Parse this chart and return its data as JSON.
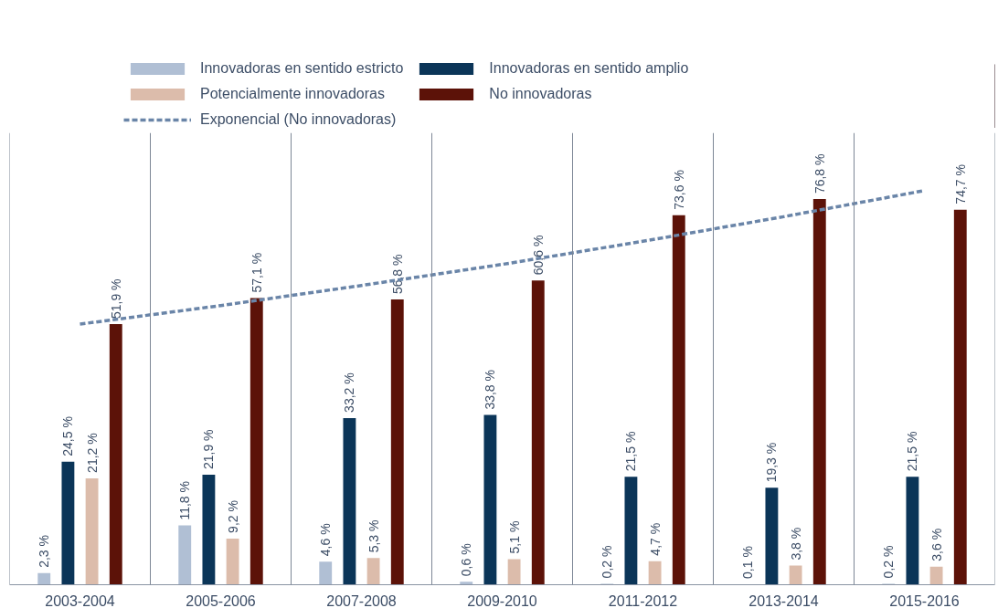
{
  "chart_data": {
    "type": "bar",
    "categories": [
      "2003-2004",
      "2005-2006",
      "2007-2008",
      "2009-2010",
      "2011-2012",
      "2013-2014",
      "2015-2016"
    ],
    "series": [
      {
        "name": "Innovadoras en sentido estricto",
        "color": "#b0bfd4",
        "values": [
          2.3,
          11.8,
          4.6,
          0.6,
          0.2,
          0.1,
          0.2
        ],
        "value_labels": [
          "2,3 %",
          "11,8 %",
          "4,6 %",
          "0,6 %",
          "0,2 %",
          "0,1 %",
          "0,2 %"
        ]
      },
      {
        "name": "Innovadoras en sentido amplio",
        "color": "#0b3558",
        "values": [
          24.5,
          21.9,
          33.2,
          33.8,
          21.5,
          19.3,
          21.5
        ],
        "value_labels": [
          "24,5 %",
          "21,9 %",
          "33,2 %",
          "33,8 %",
          "21,5 %",
          "19,3 %",
          "21,5 %"
        ]
      },
      {
        "name": "Potencialmente innovadoras",
        "color": "#dcbcab",
        "values": [
          21.2,
          9.2,
          5.3,
          5.1,
          4.7,
          3.8,
          3.6
        ],
        "value_labels": [
          "21,2 %",
          "9,2 %",
          "5,3 %",
          "5,1 %",
          "4,7 %",
          "3,8 %",
          "3,6 %"
        ]
      },
      {
        "name": "No innovadoras",
        "color": "#5c1208",
        "values": [
          51.9,
          57.1,
          56.8,
          60.6,
          73.6,
          76.8,
          74.7
        ],
        "value_labels": [
          "51,9 %",
          "57,1 %",
          "56,8 %",
          "60,6 %",
          "73,6 %",
          "76,8 %",
          "74,7 %"
        ]
      },
      {
        "name": "Exponencial (No innovadoras)",
        "type": "line",
        "line_style": "dashed",
        "color": "#6a85a8",
        "values": [
          51.9,
          55.6,
          59.6,
          63.8,
          68.4,
          73.3,
          78.5
        ]
      }
    ],
    "ylim": [
      0,
      90
    ],
    "legend": "top",
    "grid": false
  }
}
